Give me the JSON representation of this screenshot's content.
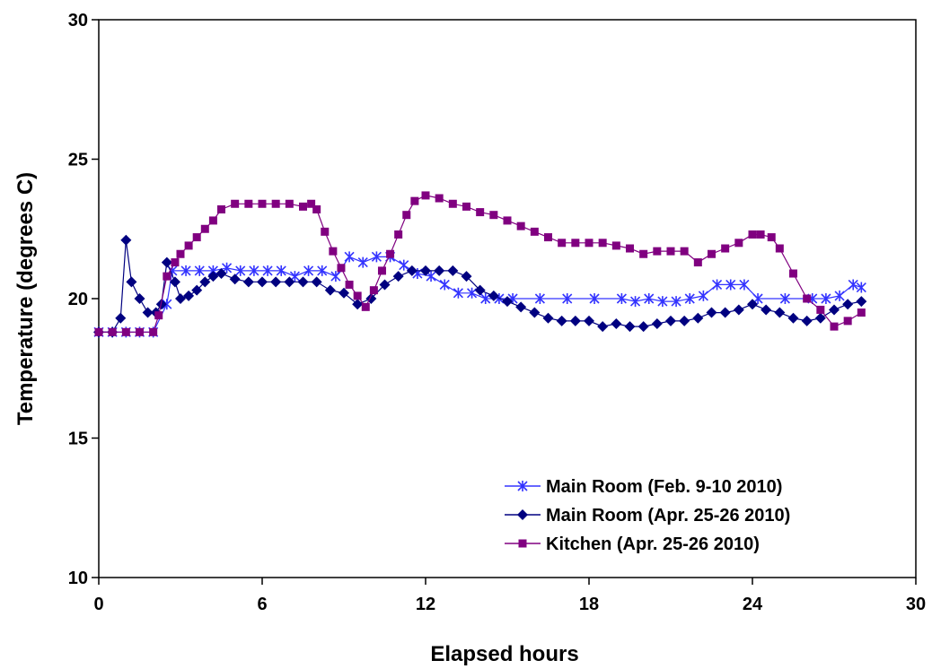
{
  "chart_data": {
    "type": "line",
    "title": "",
    "xlabel": "Elapsed hours",
    "ylabel": "Temperature (degrees C)",
    "xlim": [
      0,
      30
    ],
    "ylim": [
      10,
      30
    ],
    "xticks": [
      0,
      6,
      12,
      18,
      24,
      30
    ],
    "yticks": [
      10,
      15,
      20,
      25,
      30
    ],
    "grid": false,
    "legend_position": "bottom-right",
    "series": [
      {
        "name": "Main Room (Feb. 9-10 2010)",
        "color": "#3333FF",
        "marker": "asterisk",
        "x": [
          0,
          0.5,
          1,
          1.5,
          2,
          2.5,
          2.7,
          3.2,
          3.7,
          4.2,
          4.7,
          5.2,
          5.7,
          6.2,
          6.7,
          7.2,
          7.7,
          8.2,
          8.7,
          9.2,
          9.7,
          10.2,
          10.7,
          11.2,
          11.7,
          12.2,
          12.7,
          13.2,
          13.7,
          14.2,
          14.7,
          15.2,
          16.2,
          17.2,
          18.2,
          19.2,
          19.7,
          20.2,
          20.7,
          21.2,
          21.7,
          22.2,
          22.7,
          23.2,
          23.7,
          24.2,
          25.2,
          26.2,
          26.7,
          27.2,
          27.7,
          28
        ],
        "y": [
          18.8,
          18.8,
          18.8,
          18.8,
          18.8,
          19.8,
          21.0,
          21.0,
          21.0,
          21.0,
          21.1,
          21.0,
          21.0,
          21.0,
          21.0,
          20.8,
          21.0,
          21.0,
          20.8,
          21.5,
          21.3,
          21.5,
          21.5,
          21.2,
          20.9,
          20.8,
          20.5,
          20.2,
          20.2,
          20.0,
          20.0,
          20.0,
          20.0,
          20.0,
          20.0,
          20.0,
          19.9,
          20.0,
          19.9,
          19.9,
          20.0,
          20.1,
          20.5,
          20.5,
          20.5,
          20.0,
          20.0,
          20.0,
          20.0,
          20.1,
          20.5,
          20.4
        ]
      },
      {
        "name": "Main Room (Apr. 25-26 2010)",
        "color": "#000080",
        "marker": "diamond",
        "x": [
          0,
          0.5,
          0.8,
          1.0,
          1.2,
          1.5,
          1.8,
          2.1,
          2.3,
          2.5,
          2.8,
          3.0,
          3.3,
          3.6,
          3.9,
          4.2,
          4.5,
          5.0,
          5.5,
          6.0,
          6.5,
          7.0,
          7.5,
          8.0,
          8.5,
          9.0,
          9.5,
          10.0,
          10.5,
          11.0,
          11.5,
          12.0,
          12.5,
          13.0,
          13.5,
          14.0,
          14.5,
          15.0,
          15.5,
          16.0,
          16.5,
          17.0,
          17.5,
          18.0,
          18.5,
          19.0,
          19.5,
          20.0,
          20.5,
          21.0,
          21.5,
          22.0,
          22.5,
          23.0,
          23.5,
          24.0,
          24.5,
          25.0,
          25.5,
          26.0,
          26.5,
          27.0,
          27.5,
          28.0
        ],
        "y": [
          18.8,
          18.8,
          19.3,
          22.1,
          20.6,
          20.0,
          19.5,
          19.5,
          19.8,
          21.3,
          20.6,
          20.0,
          20.1,
          20.3,
          20.6,
          20.8,
          20.9,
          20.7,
          20.6,
          20.6,
          20.6,
          20.6,
          20.6,
          20.6,
          20.3,
          20.2,
          19.8,
          20.0,
          20.5,
          20.8,
          21.0,
          21.0,
          21.0,
          21.0,
          20.8,
          20.3,
          20.1,
          19.9,
          19.7,
          19.5,
          19.3,
          19.2,
          19.2,
          19.2,
          19.0,
          19.1,
          19.0,
          19.0,
          19.1,
          19.2,
          19.2,
          19.3,
          19.5,
          19.5,
          19.6,
          19.8,
          19.6,
          19.5,
          19.3,
          19.2,
          19.3,
          19.6,
          19.8,
          19.9
        ]
      },
      {
        "name": "Kitchen (Apr. 25-26 2010)",
        "color": "#800080",
        "marker": "square",
        "x": [
          0,
          0.5,
          1.0,
          1.5,
          2.0,
          2.2,
          2.5,
          2.8,
          3.0,
          3.3,
          3.6,
          3.9,
          4.2,
          4.5,
          5.0,
          5.5,
          6.0,
          6.5,
          7.0,
          7.5,
          7.8,
          8.0,
          8.3,
          8.6,
          8.9,
          9.2,
          9.5,
          9.8,
          10.1,
          10.4,
          10.7,
          11.0,
          11.3,
          11.6,
          12.0,
          12.5,
          13.0,
          13.5,
          14.0,
          14.5,
          15.0,
          15.5,
          16.0,
          16.5,
          17.0,
          17.5,
          18.0,
          18.5,
          19.0,
          19.5,
          20.0,
          20.5,
          21.0,
          21.5,
          22.0,
          22.5,
          23.0,
          23.5,
          24.0,
          24.3,
          24.7,
          25.0,
          25.5,
          26.0,
          26.5,
          27.0,
          27.5,
          28.0
        ],
        "y": [
          18.8,
          18.8,
          18.8,
          18.8,
          18.8,
          19.4,
          20.8,
          21.3,
          21.6,
          21.9,
          22.2,
          22.5,
          22.8,
          23.2,
          23.4,
          23.4,
          23.4,
          23.4,
          23.4,
          23.3,
          23.4,
          23.2,
          22.4,
          21.7,
          21.1,
          20.5,
          20.1,
          19.7,
          20.3,
          21.0,
          21.6,
          22.3,
          23.0,
          23.5,
          23.7,
          23.6,
          23.4,
          23.3,
          23.1,
          23.0,
          22.8,
          22.6,
          22.4,
          22.2,
          22.0,
          22.0,
          22.0,
          22.0,
          21.9,
          21.8,
          21.6,
          21.7,
          21.7,
          21.7,
          21.3,
          21.6,
          21.8,
          22.0,
          22.3,
          22.3,
          22.2,
          21.8,
          20.9,
          20.0,
          19.6,
          19.0,
          19.2,
          19.5
        ]
      }
    ]
  }
}
